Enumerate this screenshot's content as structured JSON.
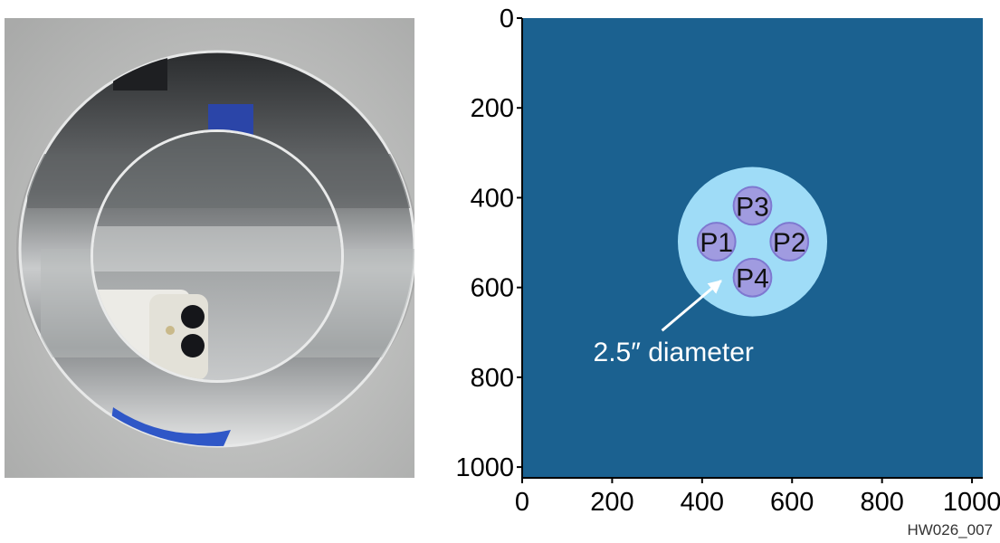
{
  "photo": {
    "subject": "mirror-sample-photo",
    "colors": {
      "background": "#c4c5c4",
      "mirror_rim": "#7a7c7d",
      "mirror_face": "#8e9192"
    }
  },
  "chart_data": {
    "type": "diagram",
    "xlim": [
      0,
      1024
    ],
    "ylim": [
      0,
      1024
    ],
    "y_inverted": true,
    "x_ticks": [
      "0",
      "200",
      "400",
      "600",
      "800",
      "1000"
    ],
    "x_tick_values": [
      0,
      200,
      400,
      600,
      800,
      1000
    ],
    "y_ticks": [
      "0",
      "200",
      "400",
      "600",
      "800",
      "1000"
    ],
    "y_tick_values": [
      0,
      200,
      400,
      600,
      800,
      1000
    ],
    "outer_circle": {
      "cx": 512,
      "cy": 498,
      "r": 166
    },
    "points": [
      {
        "label": "P1",
        "x": 432,
        "y": 498,
        "r": 42
      },
      {
        "label": "P2",
        "x": 594,
        "y": 498,
        "r": 42
      },
      {
        "label": "P3",
        "x": 512,
        "y": 418,
        "r": 42
      },
      {
        "label": "P4",
        "x": 512,
        "y": 578,
        "r": 42
      }
    ],
    "annotation": {
      "text": "2.5″ diameter",
      "text_x": 158,
      "text_y": 742,
      "arrow_from": [
        311,
        696
      ],
      "arrow_to": [
        442,
        585
      ]
    },
    "colors": {
      "background": "#1b6190",
      "outer_circle": "#9fdcf7",
      "point_fill": "#a09be0",
      "point_stroke": "#7e78d0",
      "annotation": "#ffffff"
    }
  },
  "figure_id": "HW026_007"
}
